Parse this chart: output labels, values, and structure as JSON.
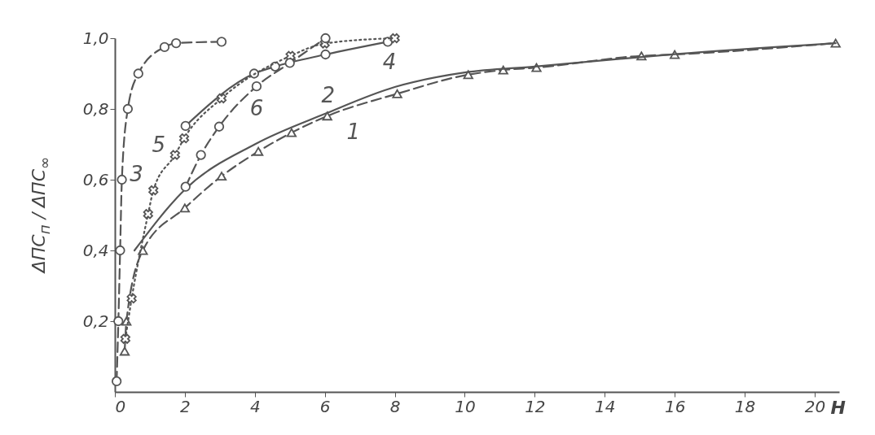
{
  "chart_data": {
    "type": "line",
    "xlabel": "H",
    "ylabel": "ΔПС$_{п}$ / ΔПС$_{∞}$",
    "xlim": [
      0,
      20.7
    ],
    "xticks": [
      0,
      2,
      4,
      6,
      8,
      10,
      12,
      14,
      16,
      18,
      20
    ],
    "ylim": [
      0,
      1.0
    ],
    "yticks": [
      {
        "value": 0.2,
        "label": "0,2"
      },
      {
        "value": 0.4,
        "label": "0,4"
      },
      {
        "value": 0.6,
        "label": "0,6"
      },
      {
        "value": 0.8,
        "label": "0,8"
      },
      {
        "value": 1.0,
        "label": "1,0"
      }
    ],
    "series": [
      {
        "name": "1",
        "color": "#555555",
        "line_style": "dashed",
        "marker": "triangle",
        "x": [
          0.28,
          0.33,
          0.8,
          2,
          3.05,
          4.1,
          5.05,
          6.07,
          8.07,
          10.1,
          11.1,
          12.05,
          15.05,
          16,
          20.6
        ],
        "values": [
          0.115,
          0.2,
          0.4,
          0.52,
          0.61,
          0.68,
          0.733,
          0.78,
          0.843,
          0.897,
          0.91,
          0.917,
          0.95,
          0.954,
          0.986
        ]
      },
      {
        "name": "2",
        "color": "#555555",
        "line_style": "solid",
        "marker": "none",
        "x": [
          0.56,
          2,
          4,
          6,
          8,
          10,
          12,
          16,
          20.6
        ],
        "values": [
          0.4,
          0.572,
          0.7,
          0.786,
          0.862,
          0.903,
          0.92,
          0.955,
          0.986
        ]
      },
      {
        "name": "3",
        "color": "#555555",
        "line_style": "dashed",
        "marker": "circle",
        "x": [
          0.05,
          0.1,
          0.15,
          0.2,
          0.37,
          0.67,
          1.42,
          1.75,
          3.05
        ],
        "values": [
          0.03,
          0.2,
          0.4,
          0.6,
          0.8,
          0.9,
          0.975,
          0.986,
          0.99
        ]
      },
      {
        "name": "4",
        "color": "#555555",
        "line_style": "solid",
        "marker": "circle",
        "x": [
          2.02,
          3.98,
          4.58,
          6.02,
          7.8
        ],
        "values": [
          0.752,
          0.9,
          0.92,
          0.954,
          0.99
        ]
      },
      {
        "name": "5",
        "color": "#555555",
        "line_style": "dotted",
        "marker": "cross",
        "x": [
          0.3,
          0.48,
          0.95,
          1.1,
          1.72,
          1.98,
          3.05,
          5.02,
          6,
          8
        ],
        "values": [
          0.15,
          0.264,
          0.503,
          0.57,
          0.67,
          0.717,
          0.83,
          0.95,
          0.985,
          1.0
        ]
      },
      {
        "name": "6",
        "color": "#555555",
        "line_style": "dashed",
        "marker": "circle",
        "x": [
          2.02,
          2.46,
          2.98,
          4.05,
          5,
          6.02
        ],
        "values": [
          0.58,
          0.67,
          0.75,
          0.864,
          0.93,
          1.0
        ]
      }
    ]
  }
}
